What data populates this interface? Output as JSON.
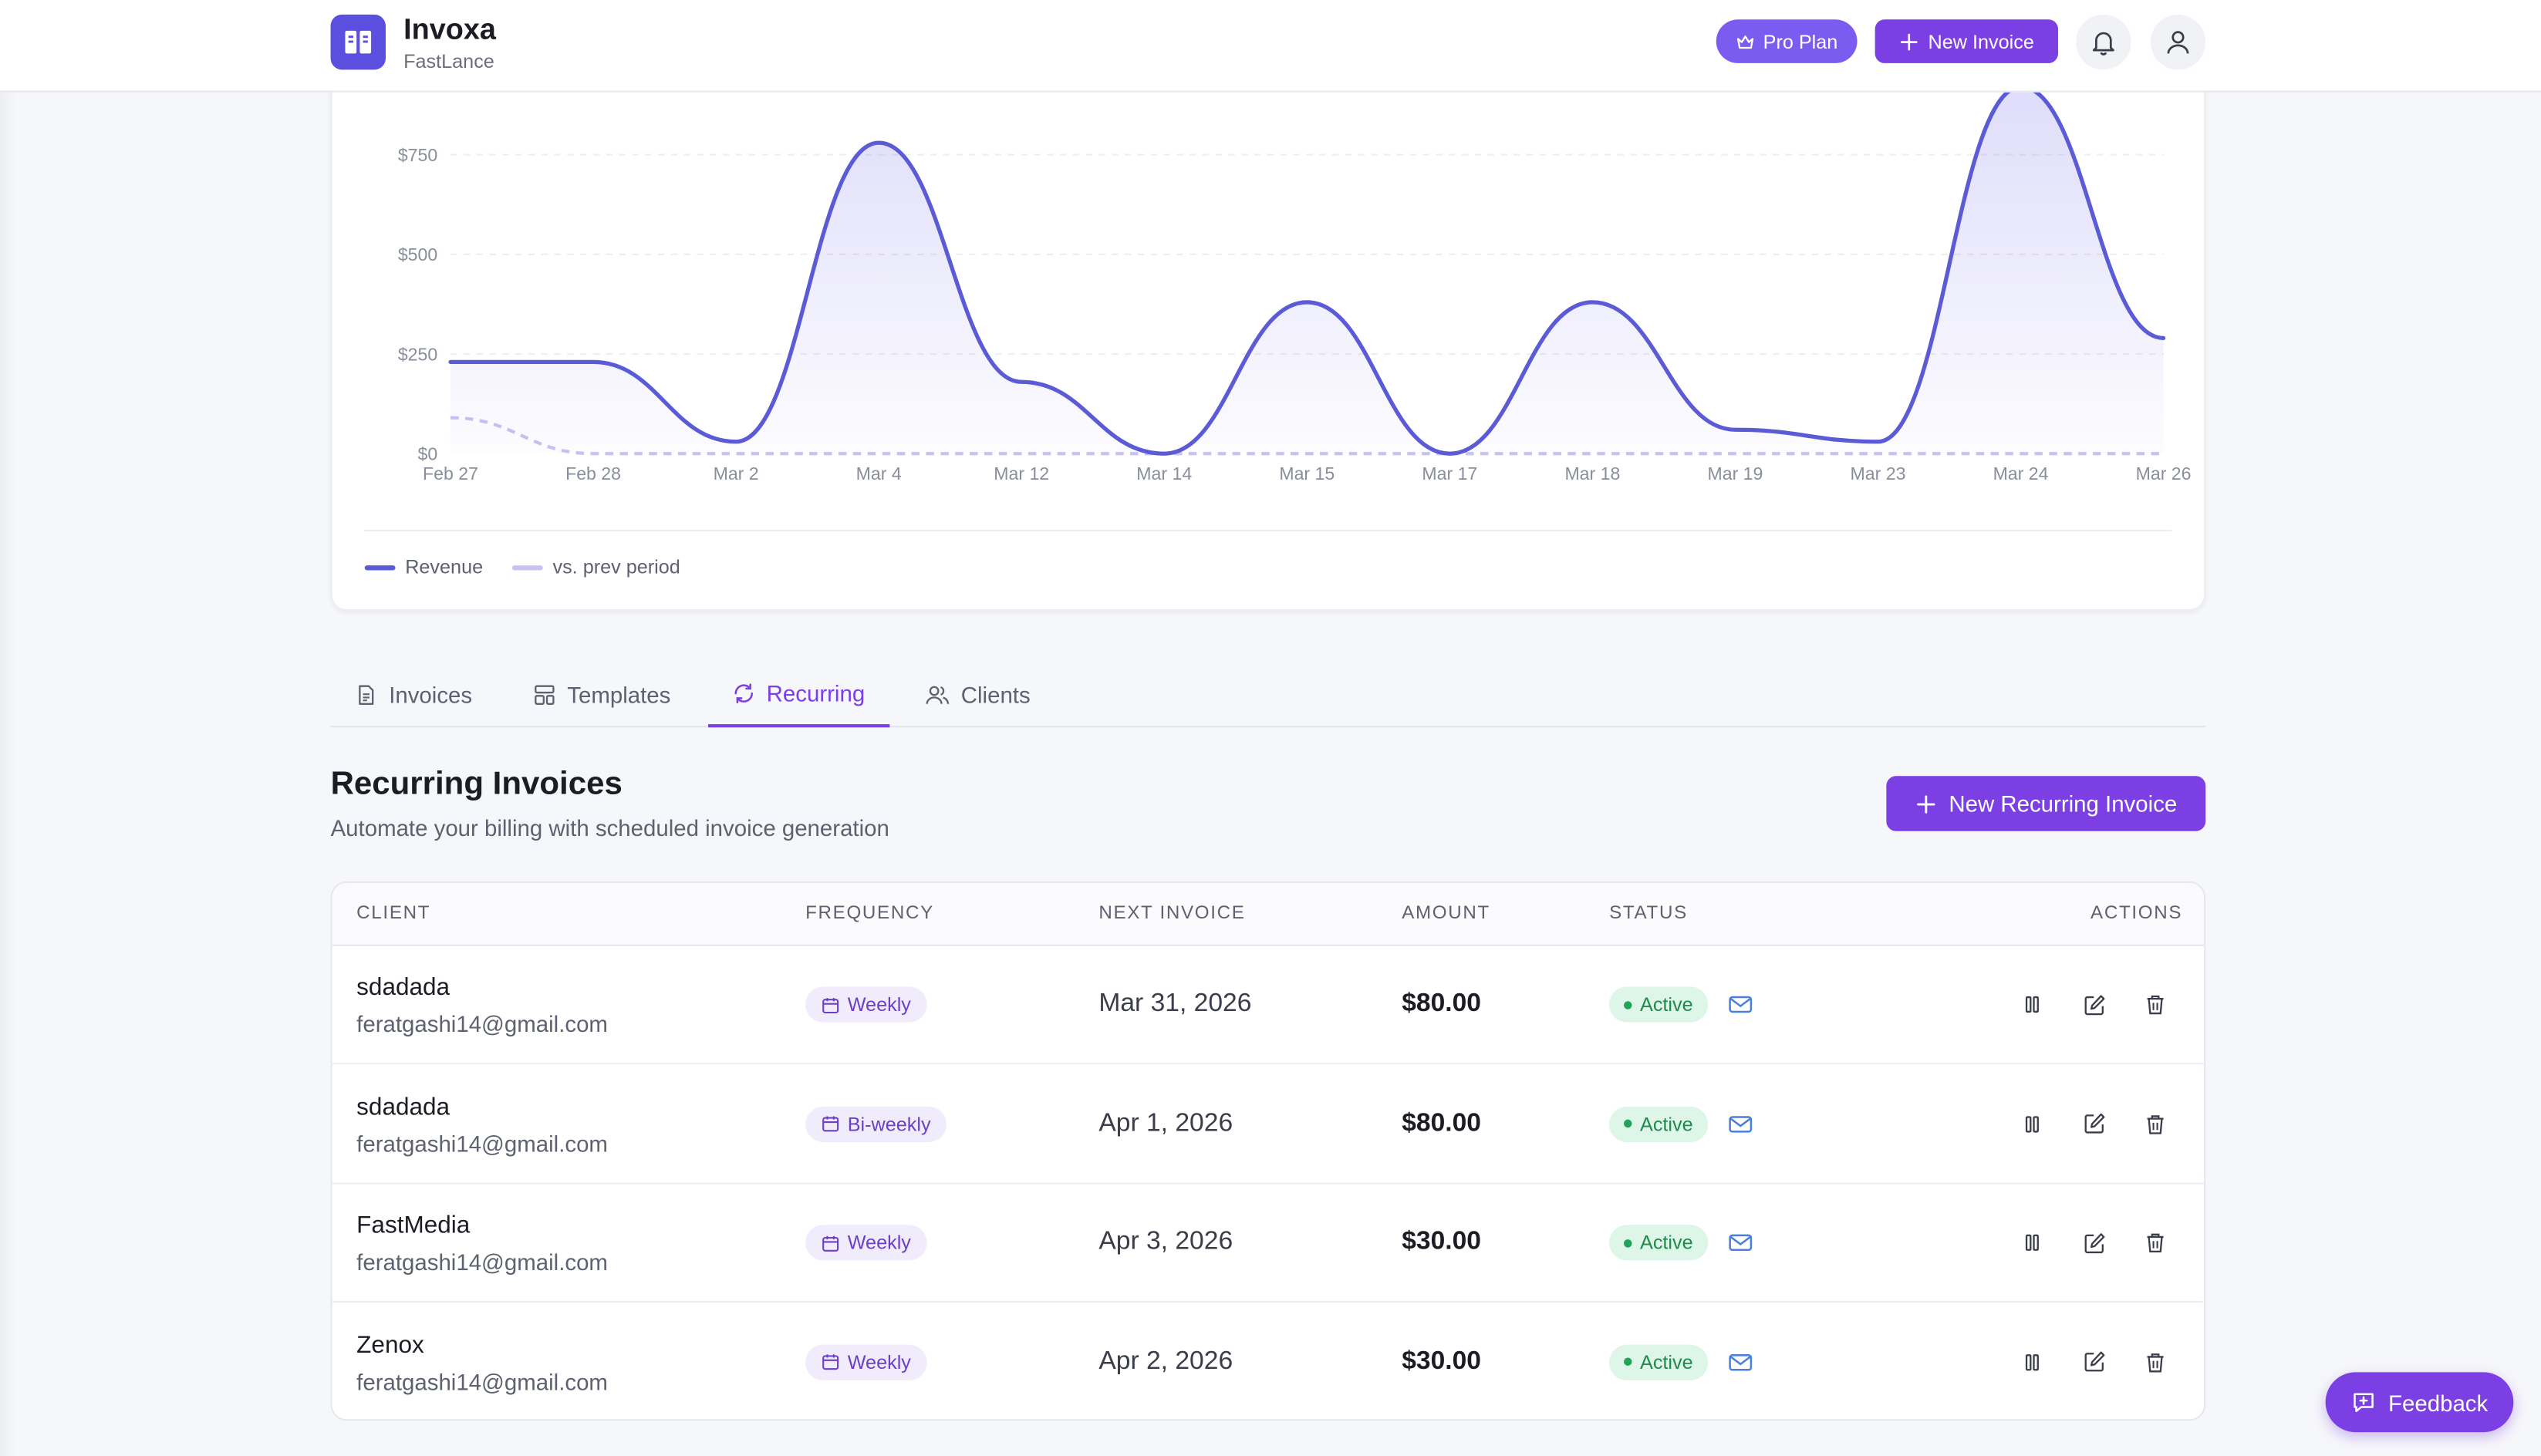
{
  "header": {
    "app_name": "Invoxa",
    "workspace": "FastLance",
    "pro_label": "Pro Plan",
    "new_invoice_label": "New Invoice"
  },
  "chart_data": {
    "type": "area",
    "x": [
      "Feb 27",
      "Feb 28",
      "Mar 2",
      "Mar 4",
      "Mar 12",
      "Mar 14",
      "Mar 15",
      "Mar 17",
      "Mar 18",
      "Mar 19",
      "Mar 23",
      "Mar 24",
      "Mar 26"
    ],
    "yticks": [
      "$0",
      "$250",
      "$500",
      "$750"
    ],
    "ylim": [
      0,
      900
    ],
    "series": [
      {
        "name": "Revenue",
        "values": [
          230,
          230,
          30,
          780,
          180,
          0,
          380,
          0,
          380,
          60,
          30,
          920,
          290
        ],
        "color": "#5b5bd6"
      },
      {
        "name": "vs. prev period",
        "values": [
          90,
          0,
          0,
          0,
          0,
          0,
          0,
          0,
          0,
          0,
          0,
          0,
          0
        ],
        "color": "#c9c3f2",
        "dashed": true
      }
    ],
    "grid": true
  },
  "tabs": [
    {
      "label": "Invoices",
      "icon": "file-icon"
    },
    {
      "label": "Templates",
      "icon": "layout-icon"
    },
    {
      "label": "Recurring",
      "icon": "refresh-icon",
      "active": true
    },
    {
      "label": "Clients",
      "icon": "users-icon"
    }
  ],
  "section": {
    "title": "Recurring Invoices",
    "subtitle": "Automate your billing with scheduled invoice generation",
    "new_button": "New Recurring Invoice"
  },
  "table": {
    "headers": {
      "client": "CLIENT",
      "frequency": "FREQUENCY",
      "next_invoice": "NEXT INVOICE",
      "amount": "AMOUNT",
      "status": "STATUS",
      "actions": "ACTIONS"
    },
    "rows": [
      {
        "client": "sdadada",
        "email": "feratgashi14@gmail.com",
        "frequency": "Weekly",
        "next": "Mar 31, 2026",
        "amount": "$80.00",
        "status": "Active"
      },
      {
        "client": "sdadada",
        "email": "feratgashi14@gmail.com",
        "frequency": "Bi-weekly",
        "next": "Apr 1, 2026",
        "amount": "$80.00",
        "status": "Active"
      },
      {
        "client": "FastMedia",
        "email": "feratgashi14@gmail.com",
        "frequency": "Weekly",
        "next": "Apr 3, 2026",
        "amount": "$30.00",
        "status": "Active"
      },
      {
        "client": "Zenox",
        "email": "feratgashi14@gmail.com",
        "frequency": "Weekly",
        "next": "Apr 2, 2026",
        "amount": "$30.00",
        "status": "Active"
      }
    ]
  },
  "feedback_label": "Feedback",
  "colors": {
    "accent": "#7b3fe4",
    "logo": "#5b4fe0",
    "active_bg": "#ddf6e8",
    "active_text": "#1f8a4c"
  }
}
